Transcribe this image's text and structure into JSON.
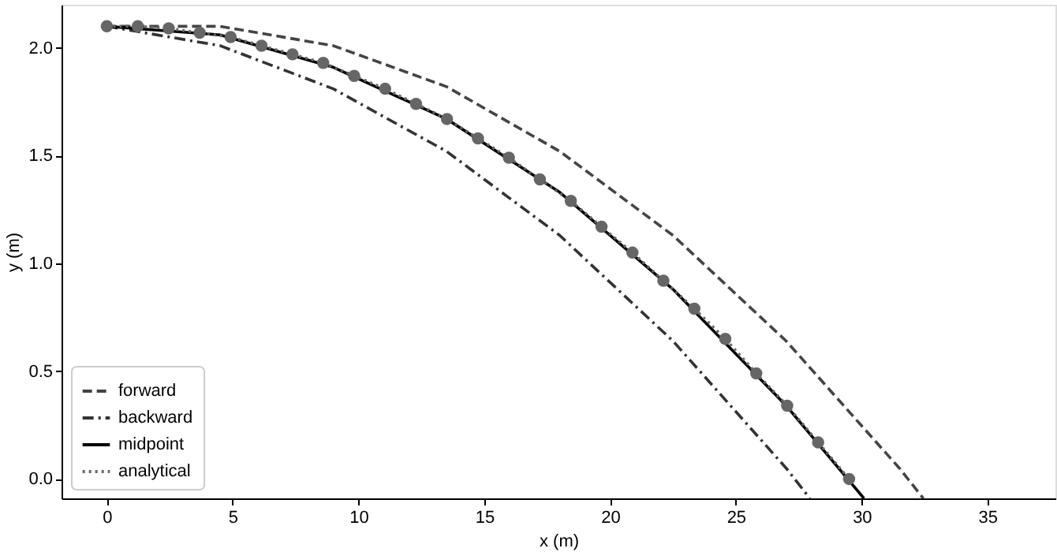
{
  "chart_data": {
    "type": "line",
    "xlabel": "x (m)",
    "ylabel": "y (m)",
    "xlim": [
      -1.8,
      37.7
    ],
    "xticks": [
      0,
      5,
      10,
      15,
      20,
      25,
      30,
      35
    ],
    "ylim": [
      -0.09,
      2.2
    ],
    "yticks": [
      {
        "value": 0,
        "label": "0.0"
      },
      {
        "value": 0.5,
        "label": "0.5"
      },
      {
        "value": 1,
        "label": "1.0"
      },
      {
        "value": 1.5,
        "label": "1.5"
      },
      {
        "value": 2,
        "label": "2.0"
      }
    ],
    "grid": false,
    "legend": "bottom left",
    "series": [
      {
        "name": "forward",
        "color": "#444444",
        "line_style": "dashed",
        "marker": "none",
        "x": [
          0,
          4.5,
          9,
          13.5,
          18,
          22.5,
          27,
          31.5,
          32.45
        ],
        "values": [
          2.1,
          2.1,
          2.01,
          1.82,
          1.52,
          1.13,
          0.64,
          0.05,
          -0.09
        ]
      },
      {
        "name": "backward",
        "color": "#333333",
        "line_style": "dashdot",
        "marker": "none",
        "x": [
          0,
          4.5,
          9,
          13.5,
          18,
          22.5,
          27,
          27.94
        ],
        "values": [
          2.1,
          2.01,
          1.81,
          1.52,
          1.13,
          0.64,
          0.05,
          -0.09
        ]
      },
      {
        "name": "midpoint",
        "color": "#000000",
        "line_style": "solid",
        "marker": "none",
        "x": [
          0,
          4.5,
          9,
          13.5,
          18,
          22.5,
          27,
          30.09
        ],
        "values": [
          2.1,
          2.06,
          1.91,
          1.67,
          1.33,
          0.88,
          0.34,
          -0.09
        ]
      },
      {
        "name": "analytical",
        "color": "#666666",
        "line_style": "dotted",
        "marker": "circle",
        "x": [
          0,
          1.23,
          2.46,
          3.69,
          4.92,
          6.15,
          7.38,
          8.6,
          9.83,
          11.06,
          12.29,
          13.52,
          14.75,
          15.98,
          17.21,
          18.44,
          19.66,
          20.89,
          22.12,
          23.35,
          24.58,
          25.81,
          27.04,
          28.27,
          29.5
        ],
        "values": [
          2.1,
          2.1,
          2.09,
          2.07,
          2.05,
          2.01,
          1.97,
          1.93,
          1.87,
          1.81,
          1.74,
          1.67,
          1.58,
          1.49,
          1.39,
          1.29,
          1.17,
          1.05,
          0.92,
          0.79,
          0.65,
          0.49,
          0.34,
          0.17,
          0.0
        ]
      }
    ]
  }
}
